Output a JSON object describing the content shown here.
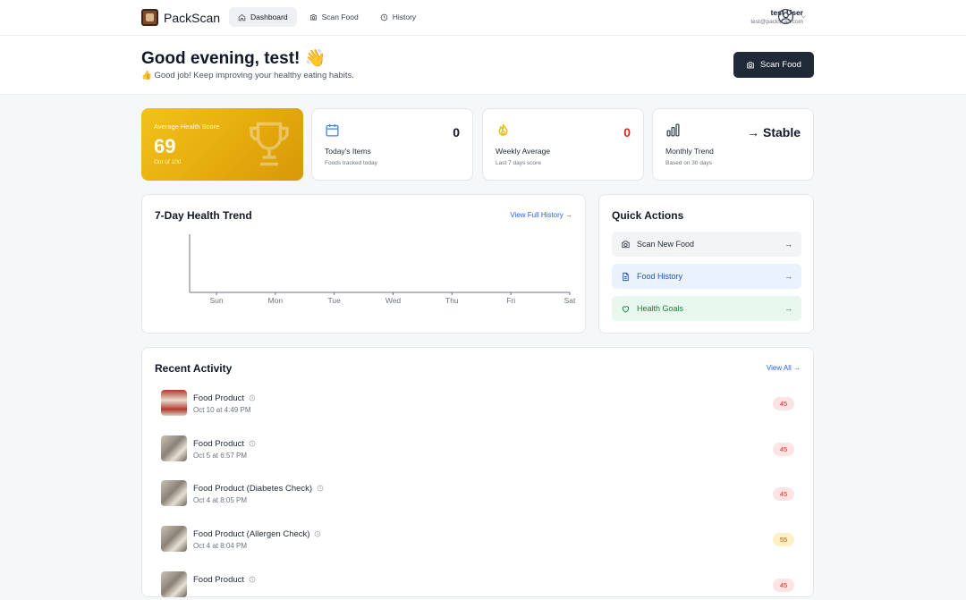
{
  "nav": {
    "brand": "PackScan",
    "links": [
      {
        "label": "Dashboard",
        "icon": "home-icon",
        "active": true
      },
      {
        "label": "Scan Food",
        "icon": "camera-icon",
        "active": false
      },
      {
        "label": "History",
        "icon": "clock-icon",
        "active": false
      }
    ],
    "user": {
      "name": "test User",
      "email": "test@packscan.com"
    }
  },
  "hero": {
    "greeting": "Good evening, test! 👋",
    "subtitle": "👍 Good job! Keep improving your healthy eating habits.",
    "scan_button": "Scan Food"
  },
  "stats": {
    "score": {
      "label": "Average Health Score",
      "value": "69",
      "note": "Out of 100",
      "icon": "trophy-icon"
    },
    "today": {
      "value": "0",
      "title": "Today's Items",
      "note": "Foods tracked today",
      "icon": "calendar-icon"
    },
    "weekly": {
      "value": "0",
      "title": "Weekly Average",
      "note": "Last 7 days score",
      "icon": "flame-icon",
      "value_color": "#dc2626"
    },
    "monthly": {
      "value": "→ Stable",
      "title": "Monthly Trend",
      "note": "Based on 30 days",
      "icon": "bar-chart-icon"
    }
  },
  "trend": {
    "title": "7-Day Health Trend",
    "link": "View Full History →"
  },
  "chart_data": {
    "type": "line",
    "categories": [
      "Sun",
      "Mon",
      "Tue",
      "Wed",
      "Thu",
      "Fri",
      "Sat"
    ],
    "series": [],
    "title": "7-Day Health Trend",
    "xlabel": "",
    "ylabel": "",
    "grid": false
  },
  "quick_actions": {
    "title": "Quick Actions",
    "items": [
      {
        "label": "Scan New Food",
        "arrow": "→",
        "icon": "camera-icon"
      },
      {
        "label": "Food History",
        "arrow": "→",
        "icon": "document-icon"
      },
      {
        "label": "Health Goals",
        "arrow": "→",
        "icon": "heart-icon"
      }
    ]
  },
  "recent": {
    "title": "Recent Activity",
    "link": "View All →",
    "items": [
      {
        "name": "Food Product",
        "time": "Oct 10 at 4:49 PM",
        "score": "45",
        "level": "red"
      },
      {
        "name": "Food Product",
        "time": "Oct 5 at 6:57 PM",
        "score": "45",
        "level": "red"
      },
      {
        "name": "Food Product (Diabetes Check)",
        "time": "Oct 4 at 8:05 PM",
        "score": "45",
        "level": "red"
      },
      {
        "name": "Food Product (Allergen Check)",
        "time": "Oct 4 at 8:04 PM",
        "score": "55",
        "level": "yellow"
      },
      {
        "name": "Food Product",
        "time": "",
        "score": "45",
        "level": "red"
      }
    ]
  },
  "colors": {
    "accent": "#1f2937",
    "score_gold": "#e4a90c",
    "link_blue": "#2563eb",
    "danger": "#dc2626"
  }
}
